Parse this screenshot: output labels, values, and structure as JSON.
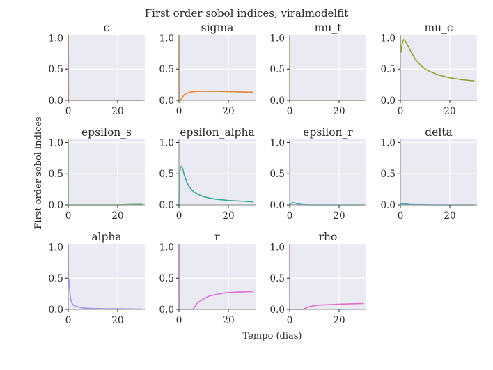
{
  "figure": {
    "title": "First order sobol indices, viralmodelfit",
    "xlabel": "Tempo (dias)",
    "ylabel": "First order sobol indices",
    "background": "#eaeaf2"
  },
  "chart_data": [
    {
      "type": "line",
      "title": "c",
      "color": "#d9656e",
      "xlim": [
        0,
        31
      ],
      "ylim": [
        0,
        1.05
      ],
      "xticks": [
        0,
        20
      ],
      "yticks": [
        0.0,
        0.5,
        1.0
      ],
      "x": [
        0,
        0.02,
        0.1,
        1,
        5,
        10,
        15,
        20,
        25,
        30
      ],
      "y": [
        0.6,
        1.05,
        0.0,
        0.0,
        0.0,
        0.0,
        0.0,
        0.0,
        0.0,
        0.0
      ]
    },
    {
      "type": "line",
      "title": "sigma",
      "color": "#e2863c",
      "xlim": [
        0,
        31
      ],
      "ylim": [
        0,
        1.05
      ],
      "xticks": [
        0,
        20
      ],
      "yticks": [
        0.0,
        0.5,
        1.0
      ],
      "x": [
        0,
        0.02,
        0.1,
        0.5,
        1,
        2,
        3,
        4,
        5,
        6,
        8,
        10,
        12,
        15,
        20,
        25,
        30
      ],
      "y": [
        1.05,
        0.0,
        0.0,
        0.0,
        0.03,
        0.08,
        0.11,
        0.125,
        0.135,
        0.14,
        0.145,
        0.145,
        0.145,
        0.145,
        0.14,
        0.135,
        0.13
      ]
    },
    {
      "type": "line",
      "title": "mu_t",
      "color": "#b49a2c",
      "xlim": [
        0,
        31
      ],
      "ylim": [
        0,
        1.05
      ],
      "xticks": [
        0,
        20
      ],
      "yticks": [
        0.0,
        0.5,
        1.0
      ],
      "x": [
        0,
        0.02,
        0.1,
        1,
        5,
        10,
        15,
        20,
        25,
        30
      ],
      "y": [
        1.05,
        0.0,
        0.0,
        0.0,
        0.0,
        0.0,
        0.0,
        0.0,
        0.0,
        0.0
      ]
    },
    {
      "type": "line",
      "title": "mu_c",
      "color": "#8ca331",
      "xlim": [
        0,
        31
      ],
      "ylim": [
        0,
        1.05
      ],
      "xticks": [
        0,
        20
      ],
      "yticks": [
        0.0,
        0.5,
        1.0
      ],
      "x": [
        0,
        0.05,
        0.1,
        0.2,
        0.35,
        0.5,
        0.8,
        1.2,
        1.6,
        2,
        3,
        4,
        5,
        6,
        8,
        10,
        12,
        15,
        20,
        25,
        30
      ],
      "y": [
        1.05,
        0.9,
        0.8,
        0.77,
        0.78,
        0.85,
        0.92,
        0.97,
        0.97,
        0.95,
        0.88,
        0.8,
        0.73,
        0.66,
        0.57,
        0.5,
        0.46,
        0.41,
        0.36,
        0.33,
        0.31
      ]
    },
    {
      "type": "line",
      "title": "epsilon_s",
      "color": "#4aa957",
      "xlim": [
        0,
        31
      ],
      "ylim": [
        0,
        1.05
      ],
      "xticks": [
        0,
        20
      ],
      "yticks": [
        0.0,
        0.5,
        1.0
      ],
      "x": [
        0,
        0.02,
        0.1,
        1,
        5,
        10,
        15,
        20,
        22,
        25,
        28,
        30
      ],
      "y": [
        1.05,
        0.0,
        0.0,
        0.0,
        0.0,
        0.0,
        0.0,
        0.0,
        0.002,
        0.006,
        0.008,
        0.008
      ]
    },
    {
      "type": "line",
      "title": "epsilon_alpha",
      "color": "#35a994",
      "xlim": [
        0,
        31
      ],
      "ylim": [
        0,
        1.05
      ],
      "xticks": [
        0,
        20
      ],
      "yticks": [
        0.0,
        0.5,
        1.0
      ],
      "x": [
        0,
        0.1,
        0.3,
        0.6,
        1,
        1.5,
        2,
        3,
        4,
        5,
        6,
        8,
        10,
        12,
        15,
        20,
        25,
        30
      ],
      "y": [
        0.0,
        0.3,
        0.52,
        0.6,
        0.62,
        0.58,
        0.5,
        0.38,
        0.3,
        0.25,
        0.21,
        0.16,
        0.13,
        0.11,
        0.09,
        0.07,
        0.06,
        0.05
      ]
    },
    {
      "type": "line",
      "title": "epsilon_r",
      "color": "#36a5b8",
      "xlim": [
        0,
        31
      ],
      "ylim": [
        0,
        1.05
      ],
      "xticks": [
        0,
        20
      ],
      "yticks": [
        0.0,
        0.5,
        1.0
      ],
      "x": [
        0,
        0.2,
        0.6,
        1,
        1.5,
        2,
        3,
        4,
        5,
        6,
        8,
        10,
        12,
        15,
        20,
        30
      ],
      "y": [
        0.0,
        0.01,
        0.025,
        0.035,
        0.035,
        0.03,
        0.02,
        0.012,
        0.007,
        0.004,
        0.0,
        0.0,
        0.0,
        0.0,
        0.0,
        0.0
      ]
    },
    {
      "type": "line",
      "title": "delta",
      "color": "#3f9ec0",
      "xlim": [
        0,
        31
      ],
      "ylim": [
        0,
        1.05
      ],
      "xticks": [
        0,
        20
      ],
      "yticks": [
        0.0,
        0.5,
        1.0
      ],
      "x": [
        0,
        0.2,
        0.6,
        1,
        2,
        3,
        4,
        6,
        8,
        10,
        12,
        15,
        20,
        25,
        30
      ],
      "y": [
        0.0,
        0.01,
        0.02,
        0.02,
        0.015,
        0.01,
        0.006,
        0.004,
        0.003,
        0.002,
        0.0,
        0.0,
        0.0,
        0.0,
        0.0
      ]
    },
    {
      "type": "line",
      "title": "alpha",
      "color": "#9a98e6",
      "xlim": [
        0,
        31
      ],
      "ylim": [
        0,
        1.05
      ],
      "xticks": [
        0,
        20
      ],
      "yticks": [
        0.0,
        0.5,
        1.0
      ],
      "x": [
        0,
        0.1,
        0.3,
        0.5,
        0.8,
        1,
        1.5,
        2,
        3,
        4,
        5,
        7,
        10,
        15,
        20,
        30
      ],
      "y": [
        1.05,
        0.5,
        0.47,
        0.35,
        0.22,
        0.16,
        0.1,
        0.07,
        0.05,
        0.04,
        0.03,
        0.02,
        0.015,
        0.01,
        0.01,
        0.005
      ]
    },
    {
      "type": "line",
      "title": "r",
      "color": "#de6fe2",
      "xlim": [
        0,
        31
      ],
      "ylim": [
        0,
        1.05
      ],
      "xticks": [
        0,
        20
      ],
      "yticks": [
        0.0,
        0.5,
        1.0
      ],
      "x": [
        0,
        0.02,
        0.1,
        1,
        3,
        5,
        5.5,
        6,
        7,
        8,
        10,
        12,
        15,
        18,
        20,
        25,
        30
      ],
      "y": [
        1.05,
        0.0,
        0.0,
        0.0,
        0.0,
        0.0,
        0.0,
        0.02,
        0.08,
        0.12,
        0.17,
        0.21,
        0.24,
        0.26,
        0.27,
        0.28,
        0.285
      ]
    },
    {
      "type": "line",
      "title": "rho",
      "color": "#e36dc8",
      "xlim": [
        0,
        31
      ],
      "ylim": [
        0,
        1.05
      ],
      "xticks": [
        0,
        20
      ],
      "yticks": [
        0.0,
        0.5,
        1.0
      ],
      "x": [
        0,
        0.02,
        0.1,
        1,
        3,
        5,
        5.5,
        6,
        7,
        8,
        10,
        12,
        15,
        20,
        25,
        30
      ],
      "y": [
        1.05,
        0.0,
        0.0,
        0.0,
        0.0,
        0.0,
        0.0,
        0.01,
        0.03,
        0.045,
        0.06,
        0.07,
        0.075,
        0.085,
        0.09,
        0.095
      ]
    }
  ]
}
